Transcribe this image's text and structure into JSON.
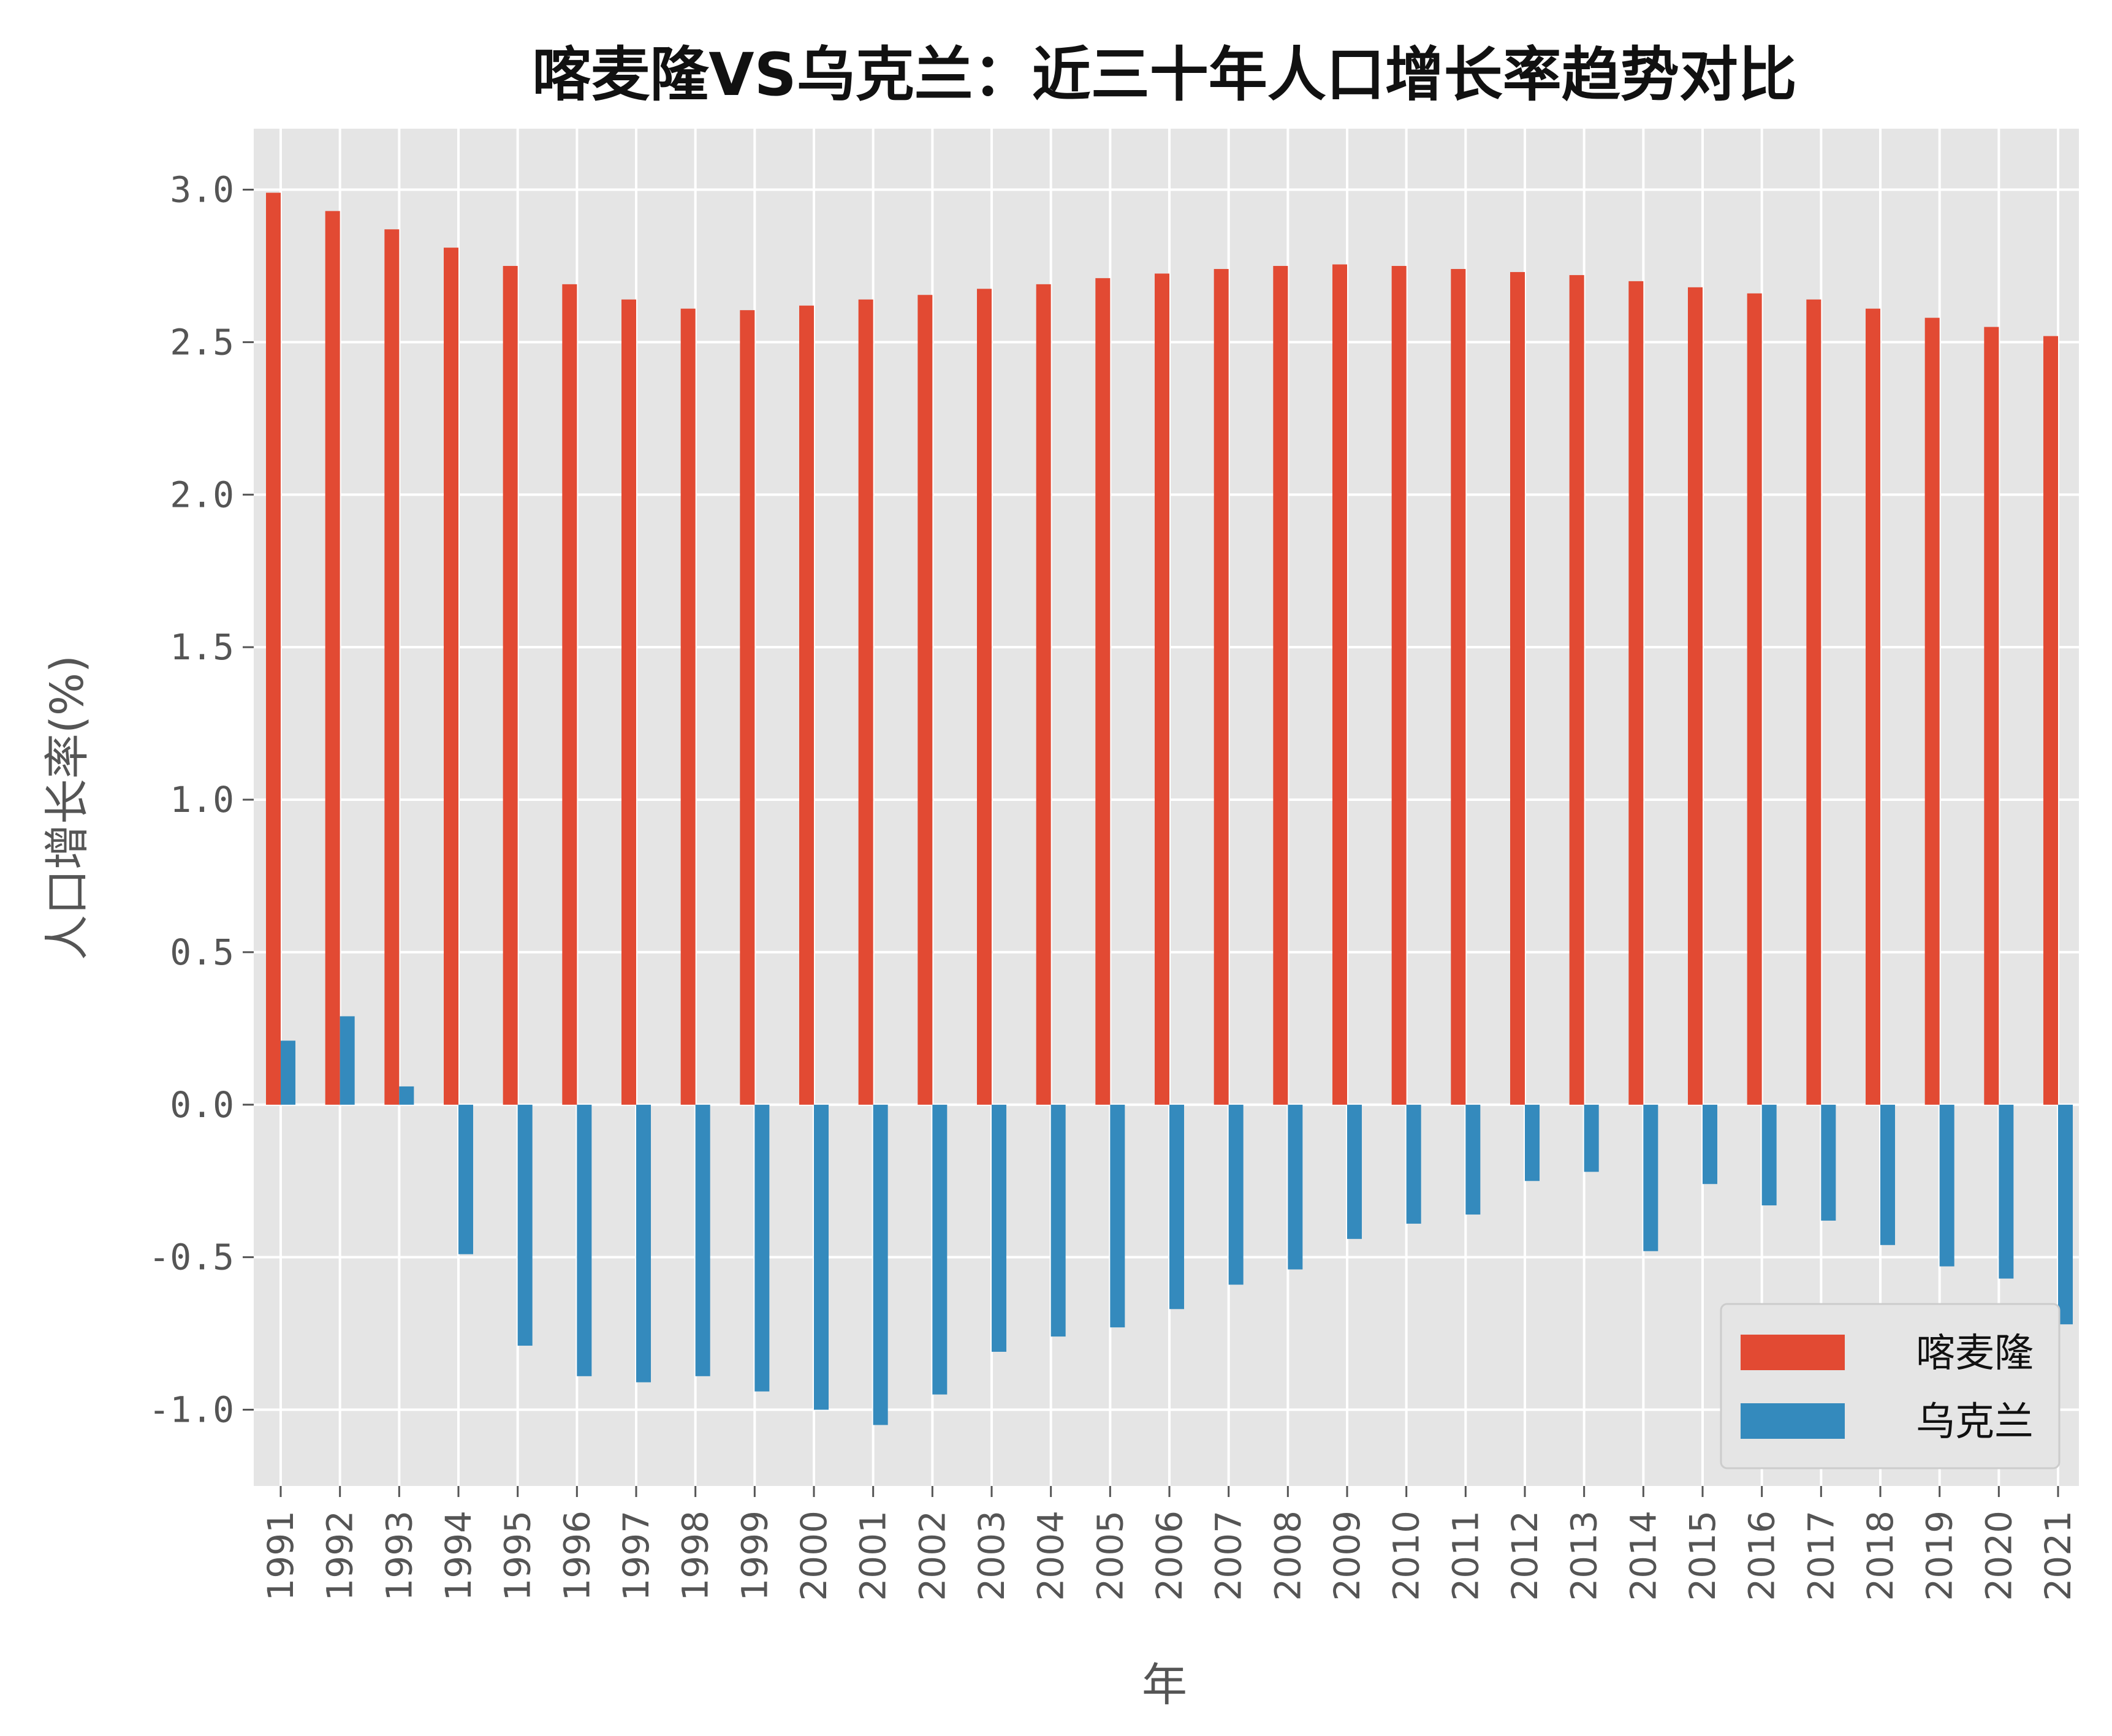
{
  "chart_data": {
    "type": "bar",
    "title": "喀麦隆VS乌克兰：近三十年人口增长率趋势对比",
    "xlabel": "年",
    "ylabel": "人口增长率(%)",
    "ylim": [
      -1.25,
      3.2
    ],
    "yticks": [
      "-1.0",
      "-0.5",
      "0.0",
      "0.5",
      "1.0",
      "1.5",
      "2.0",
      "2.5",
      "3.0"
    ],
    "grid": true,
    "legend_position": "lower-right",
    "categories": [
      "1991",
      "1992",
      "1993",
      "1994",
      "1995",
      "1996",
      "1997",
      "1998",
      "1999",
      "2000",
      "2001",
      "2002",
      "2003",
      "2004",
      "2005",
      "2006",
      "2007",
      "2008",
      "2009",
      "2010",
      "2011",
      "2012",
      "2013",
      "2014",
      "2015",
      "2016",
      "2017",
      "2018",
      "2019",
      "2020",
      "2021"
    ],
    "series": [
      {
        "name": "喀麦隆",
        "color": "#E24A33",
        "values": [
          2.99,
          2.93,
          2.87,
          2.81,
          2.75,
          2.69,
          2.64,
          2.61,
          2.605,
          2.62,
          2.64,
          2.655,
          2.675,
          2.69,
          2.71,
          2.725,
          2.74,
          2.75,
          2.755,
          2.75,
          2.74,
          2.73,
          2.72,
          2.7,
          2.68,
          2.66,
          2.64,
          2.61,
          2.58,
          2.55,
          2.52
        ]
      },
      {
        "name": "乌克兰",
        "color": "#348ABD",
        "values": [
          0.21,
          0.29,
          0.06,
          -0.49,
          -0.79,
          -0.89,
          -0.91,
          -0.89,
          -0.94,
          -1.0,
          -1.05,
          -0.95,
          -0.81,
          -0.76,
          -0.73,
          -0.67,
          -0.59,
          -0.54,
          -0.44,
          -0.39,
          -0.36,
          -0.25,
          -0.22,
          -0.48,
          -0.26,
          -0.33,
          -0.38,
          -0.46,
          -0.53,
          -0.57,
          -0.72
        ]
      }
    ]
  }
}
